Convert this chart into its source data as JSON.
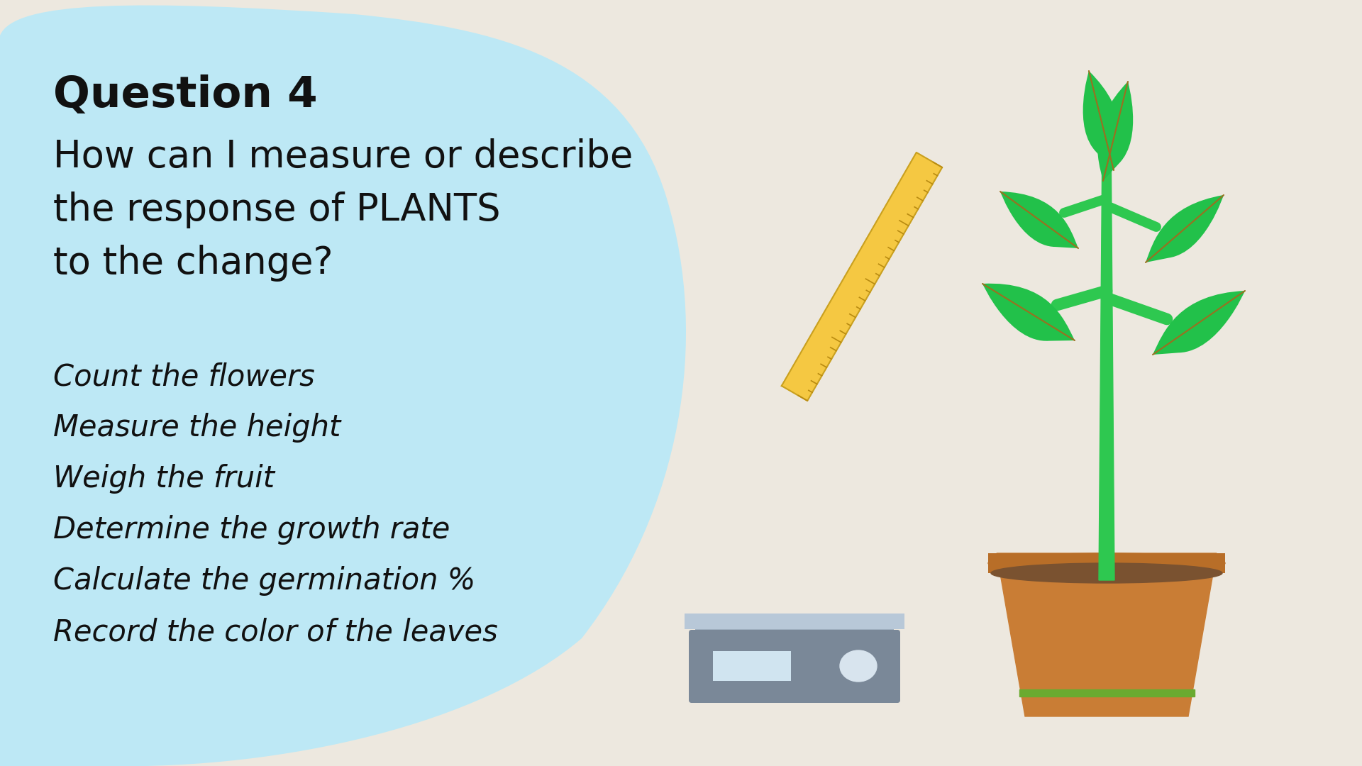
{
  "background_color": "#ede8df",
  "blob_color": "#bde8f5",
  "title": "Question 4",
  "subtitle_line1": "How can I measure or describe",
  "subtitle_line2": "the response of PLANTS",
  "subtitle_line3": "to the change?",
  "examples": [
    "Count the flowers",
    "Measure the height",
    "Weigh the fruit",
    "Determine the growth rate",
    "Calculate the germination %",
    "Record the color of the leaves"
  ],
  "title_fontsize": 44,
  "subtitle_fontsize": 38,
  "examples_fontsize": 30,
  "title_color": "#111111",
  "subtitle_color": "#111111",
  "examples_color": "#111111",
  "pot_color": "#c97d35",
  "pot_rim_color": "#b86e28",
  "pot_stripe_color": "#6aaa30",
  "soil_color": "#7a5230",
  "stem_color": "#2ec850",
  "leaf_color": "#22c14a",
  "leaf_vein": "#9a7020",
  "ruler_color": "#f5c842",
  "ruler_edge": "#c9a020",
  "ruler_tick": "#b88a10",
  "scale_top_color": "#b8c8d8",
  "scale_body_color": "#7a8898",
  "scale_display_color": "#d0e4f0",
  "scale_button_color": "#d8e4ee"
}
